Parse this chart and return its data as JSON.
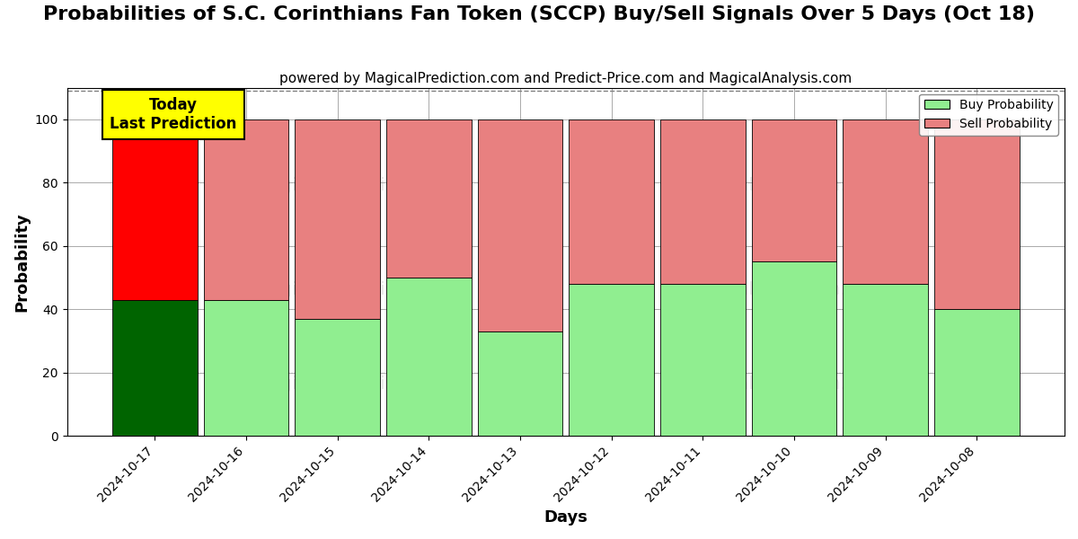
{
  "title": "Probabilities of S.C. Corinthians Fan Token (SCCP) Buy/Sell Signals Over 5 Days (Oct 18)",
  "subtitle": "powered by MagicalPrediction.com and Predict-Price.com and MagicalAnalysis.com",
  "xlabel": "Days",
  "ylabel": "Probability",
  "days": [
    "2024-10-17",
    "2024-10-16",
    "2024-10-15",
    "2024-10-14",
    "2024-10-13",
    "2024-10-12",
    "2024-10-11",
    "2024-10-10",
    "2024-10-09",
    "2024-10-08"
  ],
  "buy_values": [
    43,
    43,
    37,
    50,
    33,
    48,
    48,
    55,
    48,
    40
  ],
  "sell_values": [
    57,
    57,
    63,
    50,
    67,
    52,
    52,
    45,
    52,
    60
  ],
  "buy_colors": [
    "#006400",
    "#90EE90",
    "#90EE90",
    "#90EE90",
    "#90EE90",
    "#90EE90",
    "#90EE90",
    "#90EE90",
    "#90EE90",
    "#90EE90"
  ],
  "sell_colors": [
    "#FF0000",
    "#E88080",
    "#E88080",
    "#E88080",
    "#E88080",
    "#E88080",
    "#E88080",
    "#E88080",
    "#E88080",
    "#E88080"
  ],
  "today_label": "Today\nLast Prediction",
  "today_bg_color": "#FFFF00",
  "today_text_color": "#000000",
  "legend_buy_label": "Buy Probability",
  "legend_sell_label": "Sell Probability",
  "ylim": [
    0,
    110
  ],
  "dashed_line_y": 109,
  "bg_color": "#FFFFFF",
  "grid_color": "#AAAAAA",
  "title_fontsize": 16,
  "subtitle_fontsize": 11,
  "axis_label_fontsize": 13,
  "tick_fontsize": 10,
  "bar_width": 0.93
}
